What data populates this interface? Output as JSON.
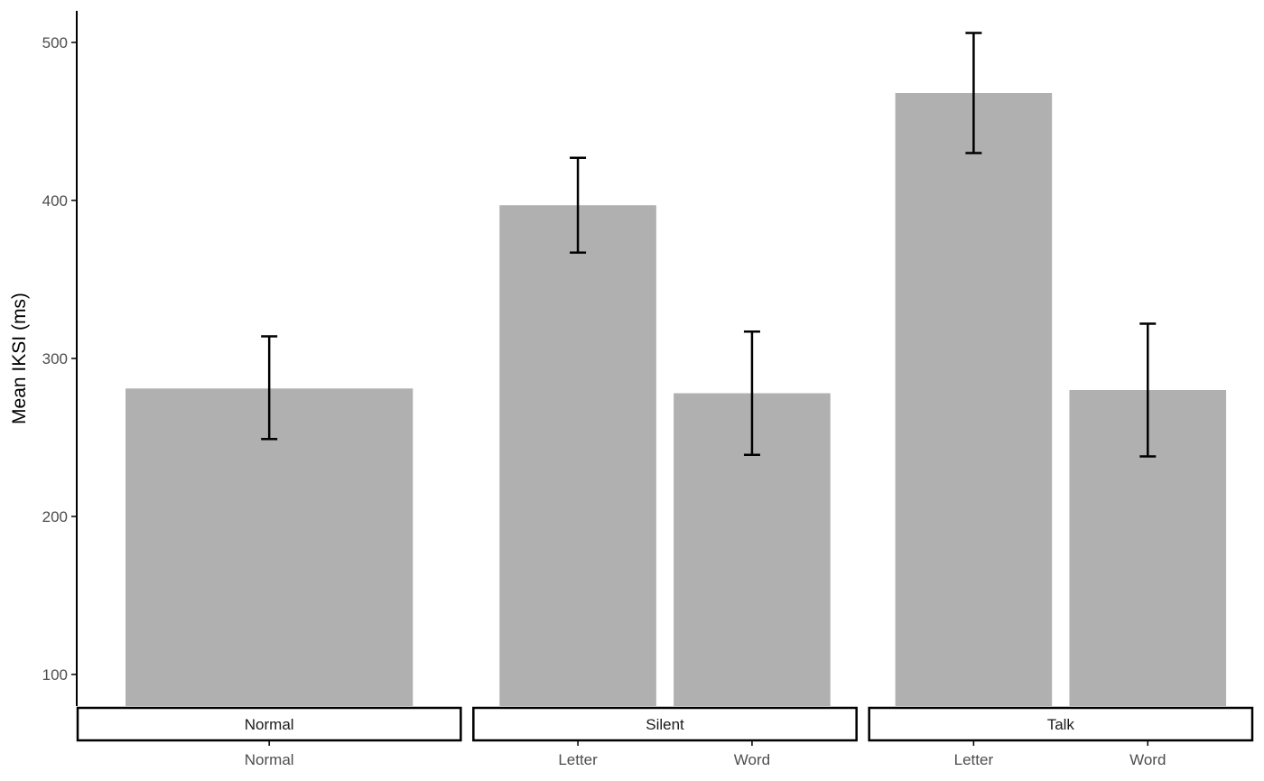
{
  "chart_data": {
    "type": "bar",
    "ylabel": "Mean IKSI (ms)",
    "ylim": [
      80,
      520
    ],
    "yticks": [
      100,
      200,
      300,
      400,
      500
    ],
    "bar_color": "#b0b0b0",
    "facets": [
      {
        "name": "Normal",
        "categories": [
          "Normal"
        ],
        "values": [
          281
        ],
        "error_low": [
          249
        ],
        "error_high": [
          314
        ]
      },
      {
        "name": "Silent",
        "categories": [
          "Letter",
          "Word"
        ],
        "values": [
          397,
          278
        ],
        "error_low": [
          367,
          239
        ],
        "error_high": [
          427,
          317
        ]
      },
      {
        "name": "Talk",
        "categories": [
          "Letter",
          "Word"
        ],
        "values": [
          468,
          280
        ],
        "error_low": [
          430,
          238
        ],
        "error_high": [
          506,
          322
        ]
      }
    ]
  }
}
